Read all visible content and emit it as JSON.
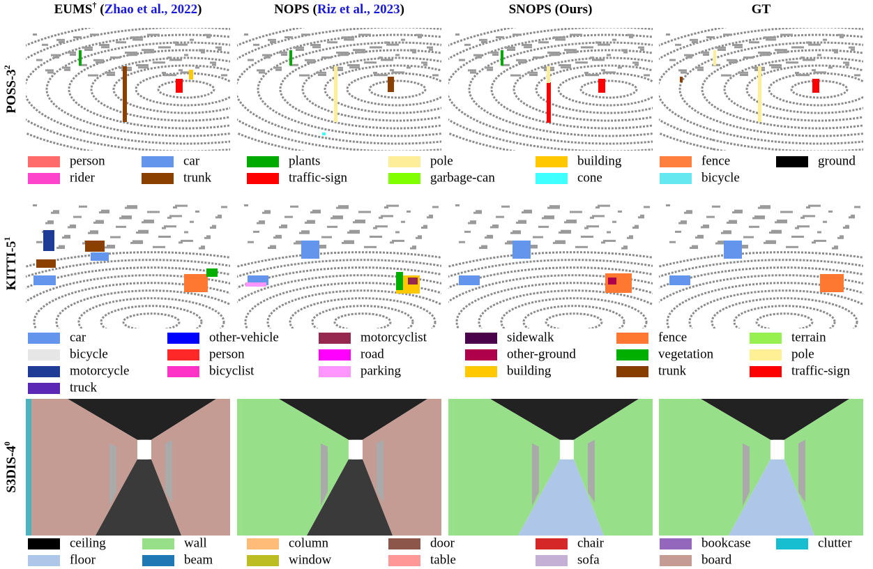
{
  "columns": [
    {
      "name": "EUMS",
      "sup": "†",
      "open": " (",
      "cite": "Zhao et al., 2022",
      "close": ")"
    },
    {
      "name": "NOPS",
      "open": " (",
      "cite": "Riz et al., 2023",
      "close": ")"
    },
    {
      "name": "SNOPS (Ours)"
    },
    {
      "name": "GT"
    }
  ],
  "rows": [
    {
      "name": "POSS-3",
      "sup": "2",
      "legend": [
        [
          {
            "label": "person",
            "color": "#ff6b6b"
          },
          {
            "label": "rider",
            "color": "#ff44cc"
          }
        ],
        [
          {
            "label": "car",
            "color": "#6495ed"
          },
          {
            "label": "trunk",
            "color": "#8b4000"
          }
        ],
        [
          {
            "label": "plants",
            "color": "#00aa00"
          },
          {
            "label": "traffic-sign",
            "color": "#ff0000"
          }
        ],
        [
          {
            "label": "pole",
            "color": "#ffee99"
          },
          {
            "label": "garbage-can",
            "color": "#80ff00"
          }
        ],
        [
          {
            "label": "building",
            "color": "#ffc800"
          },
          {
            "label": "cone",
            "color": "#40ffff"
          }
        ],
        [
          {
            "label": "fence",
            "color": "#ff7f3f"
          },
          {
            "label": "bicycle",
            "color": "#66e8f0"
          }
        ],
        [
          {
            "label": "ground",
            "color": "#000000"
          }
        ]
      ]
    },
    {
      "name": "KITTI-5",
      "sup": "1",
      "legend": [
        [
          {
            "label": "car",
            "color": "#6495ed"
          },
          {
            "label": "bicycle",
            "color": "#e6e6e6"
          },
          {
            "label": "motorcycle",
            "color": "#1e3c96"
          },
          {
            "label": "truck",
            "color": "#5a28b4"
          }
        ],
        [
          {
            "label": "other-vehicle",
            "color": "#0000ff"
          },
          {
            "label": "person",
            "color": "#ff2828"
          },
          {
            "label": "bicyclist",
            "color": "#ff32c8"
          }
        ],
        [
          {
            "label": "motorcyclist",
            "color": "#962850"
          },
          {
            "label": "road",
            "color": "#ff00ff"
          },
          {
            "label": "parking",
            "color": "#ff96ff"
          }
        ],
        [
          {
            "label": "sidewalk",
            "color": "#4b004b"
          },
          {
            "label": "other-ground",
            "color": "#af004b"
          },
          {
            "label": "building",
            "color": "#ffc800"
          }
        ],
        [
          {
            "label": "fence",
            "color": "#ff7832"
          },
          {
            "label": "vegetation",
            "color": "#00af00"
          },
          {
            "label": "trunk",
            "color": "#873c00"
          }
        ],
        [
          {
            "label": "terrain",
            "color": "#96f050"
          },
          {
            "label": "pole",
            "color": "#fff096"
          },
          {
            "label": "traffic-sign",
            "color": "#ff0000"
          }
        ]
      ]
    },
    {
      "name": "S3DIS-4",
      "sup": "0",
      "legend": [
        [
          {
            "label": "ceiling",
            "color": "#000000"
          },
          {
            "label": "floor",
            "color": "#aec7e8"
          }
        ],
        [
          {
            "label": "wall",
            "color": "#98df8a"
          },
          {
            "label": "beam",
            "color": "#1f77b4"
          }
        ],
        [
          {
            "label": "column",
            "color": "#ffbb78"
          },
          {
            "label": "window",
            "color": "#bcbd22"
          }
        ],
        [
          {
            "label": "door",
            "color": "#8c564b"
          },
          {
            "label": "table",
            "color": "#ff9896"
          }
        ],
        [
          {
            "label": "chair",
            "color": "#d62728"
          },
          {
            "label": "sofa",
            "color": "#c5b0d5"
          }
        ],
        [
          {
            "label": "bookcase",
            "color": "#9467bd"
          },
          {
            "label": "board",
            "color": "#c49c94"
          }
        ],
        [
          {
            "label": "clutter",
            "color": "#17becf"
          }
        ]
      ]
    }
  ]
}
